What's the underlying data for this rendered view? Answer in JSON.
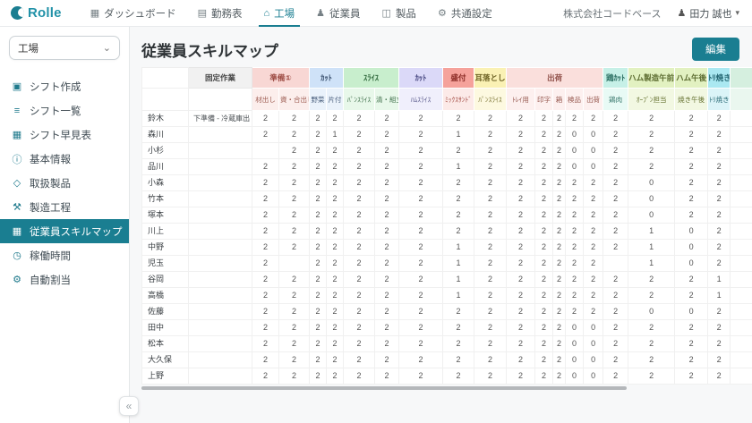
{
  "accent": "#1a7e91",
  "icons": {
    "dashboard": "▦",
    "timesheet": "▤",
    "factory": "⌂",
    "employees": "♟",
    "products": "◫",
    "settings": "⚙",
    "shift-create": "▣",
    "shift-list": "≡",
    "shift-table": "▦",
    "basic-info": "ⓘ",
    "handled-products": "◇",
    "process": "⚒",
    "skill-map": "▦",
    "hours": "◷",
    "auto-assign": "⚙",
    "user": "♟",
    "caret": "▾",
    "chevron-down": "⌄",
    "collapse": "«"
  },
  "topnav": {
    "logo": "Rolle",
    "items": [
      {
        "id": "dashboard",
        "label": "ダッシュボード",
        "icon": "dashboard",
        "active": false
      },
      {
        "id": "timesheet",
        "label": "勤務表",
        "icon": "timesheet",
        "active": false
      },
      {
        "id": "factory",
        "label": "工場",
        "icon": "factory",
        "active": true
      },
      {
        "id": "employees",
        "label": "従業員",
        "icon": "employees",
        "active": false
      },
      {
        "id": "products",
        "label": "製品",
        "icon": "products",
        "active": false
      },
      {
        "id": "settings",
        "label": "共通設定",
        "icon": "settings",
        "active": false
      }
    ],
    "company": "株式会社コードベース",
    "user": "田力 誠也"
  },
  "sidebar": {
    "selector_value": "工場",
    "items": [
      {
        "id": "shift-create",
        "label": "シフト作成",
        "icon": "shift-create",
        "active": false
      },
      {
        "id": "shift-list",
        "label": "シフト一覧",
        "icon": "shift-list",
        "active": false
      },
      {
        "id": "shift-table",
        "label": "シフト早見表",
        "icon": "shift-table",
        "active": false
      },
      {
        "id": "basic-info",
        "label": "基本情報",
        "icon": "basic-info",
        "active": false
      },
      {
        "id": "handled-products",
        "label": "取扱製品",
        "icon": "handled-products",
        "active": false
      },
      {
        "id": "process",
        "label": "製造工程",
        "icon": "process",
        "active": false
      },
      {
        "id": "skill-map",
        "label": "従業員スキルマップ",
        "icon": "skill-map",
        "active": true
      },
      {
        "id": "hours",
        "label": "稼働時間",
        "icon": "hours",
        "active": false
      },
      {
        "id": "auto-assign",
        "label": "自動割当",
        "icon": "auto-assign",
        "active": false
      }
    ]
  },
  "main": {
    "title": "従業員スキルマップ",
    "edit_button": "編集"
  },
  "table": {
    "fixed_col_header": "固定作業",
    "groups": [
      {
        "label": "準備①",
        "bg": "#f8d7d4",
        "fg": "#9c4a42",
        "sub_bg": "#fceeec",
        "sub_fg": "#9c5a50",
        "cols": [
          "材出し",
          "資・合出し"
        ]
      },
      {
        "label": "ｶｯﾄ",
        "bg": "#cfe2f8",
        "fg": "#3f5573",
        "sub_bg": "#eaf2fb",
        "sub_fg": "#4a5f7d",
        "cols": [
          "野菜",
          "片付"
        ]
      },
      {
        "label": "ｽﾗｲｽ",
        "bg": "#c8eecd",
        "fg": "#336b3f",
        "sub_bg": "#e8f8ea",
        "sub_fg": "#40704c",
        "cols": [
          "ﾊﾟﾝｽﾗｲｽ",
          "清・組立"
        ]
      },
      {
        "label": "ｶｯﾄ",
        "bg": "#dbd9f8",
        "fg": "#4c4c85",
        "sub_bg": "#f0effc",
        "sub_fg": "#5a5a8c",
        "cols": [
          "ﾊﾑｽﾗｲｽ"
        ]
      },
      {
        "label": "盛付",
        "bg": "#f5a29b",
        "fg": "#8a2b25",
        "sub_bg": "#fceae8",
        "sub_fg": "#a34a42",
        "cols": [
          "ﾐｯｸｽｻﾝﾄﾞ"
        ]
      },
      {
        "label": "耳落とし",
        "bg": "#faf1b4",
        "fg": "#6e6325",
        "sub_bg": "#fdf9e0",
        "sub_fg": "#77702f",
        "cols": [
          "ﾊﾟﾝｽﾗｲｽ"
        ]
      },
      {
        "label": "出荷",
        "bg": "#fadfdc",
        "fg": "#8f4f48",
        "sub_bg": "#fdf0ef",
        "sub_fg": "#96584f",
        "cols": [
          "ﾄﾚｲ用",
          "印字",
          "箱",
          "検品",
          "出荷"
        ]
      },
      {
        "label": "鶏ｶｯﾄ",
        "bg": "#c6f0e7",
        "fg": "#2a6e62",
        "sub_bg": "#e8faf5",
        "sub_fg": "#35756a",
        "cols": [
          "鶏肉"
        ]
      },
      {
        "label": "ハム製造午前",
        "bg": "#e2f1c1",
        "fg": "#5a6a2e",
        "sub_bg": "#f2f8e2",
        "sub_fg": "#64702f",
        "cols": [
          "ｵｰﾌﾞﾝ担当"
        ]
      },
      {
        "label": "ハム午後",
        "bg": "#e2f1c1",
        "fg": "#5a6a2e",
        "sub_bg": "#f2f8e2",
        "sub_fg": "#64702f",
        "cols": [
          "焼き午後"
        ]
      },
      {
        "label": "ﾄﾘ焼き",
        "bg": "#aae8f1",
        "fg": "#20636f",
        "sub_bg": "#dbf4f8",
        "sub_fg": "#2b6b77",
        "cols": [
          "ﾄﾘ焼き"
        ]
      },
      {
        "label": "",
        "bg": "#d5efdf",
        "fg": "#444444",
        "sub_bg": "#eaf7ef",
        "sub_fg": "#555555",
        "cols": [
          ""
        ]
      }
    ],
    "rows": [
      {
        "name": "鈴木",
        "fixed": "下準備 - 冷蔵庫出し",
        "values": [
          "2",
          "2",
          "2",
          "2",
          "2",
          "2",
          "2",
          "2",
          "2",
          "2",
          "2",
          "2",
          "2",
          "2",
          "2",
          "2",
          "2",
          "2"
        ]
      },
      {
        "name": "森川",
        "fixed": "",
        "values": [
          "2",
          "2",
          "2",
          "1",
          "2",
          "2",
          "2",
          "1",
          "2",
          "2",
          "2",
          "2",
          "0",
          "0",
          "2",
          "2",
          "2",
          "2"
        ]
      },
      {
        "name": "小杉",
        "fixed": "",
        "values": [
          "",
          "2",
          "2",
          "2",
          "2",
          "2",
          "2",
          "2",
          "2",
          "2",
          "2",
          "2",
          "0",
          "0",
          "2",
          "2",
          "2",
          "2"
        ]
      },
      {
        "name": "品川",
        "fixed": "",
        "values": [
          "2",
          "2",
          "2",
          "2",
          "2",
          "2",
          "2",
          "1",
          "2",
          "2",
          "2",
          "2",
          "0",
          "0",
          "2",
          "2",
          "2",
          "2"
        ]
      },
      {
        "name": "小森",
        "fixed": "",
        "values": [
          "2",
          "2",
          "2",
          "2",
          "2",
          "2",
          "2",
          "2",
          "2",
          "2",
          "2",
          "2",
          "2",
          "2",
          "2",
          "0",
          "2",
          "2"
        ]
      },
      {
        "name": "竹本",
        "fixed": "",
        "values": [
          "2",
          "2",
          "2",
          "2",
          "2",
          "2",
          "2",
          "2",
          "2",
          "2",
          "2",
          "2",
          "2",
          "2",
          "2",
          "0",
          "2",
          "2"
        ]
      },
      {
        "name": "塚本",
        "fixed": "",
        "values": [
          "2",
          "2",
          "2",
          "2",
          "2",
          "2",
          "2",
          "2",
          "2",
          "2",
          "2",
          "2",
          "2",
          "2",
          "2",
          "0",
          "2",
          "2"
        ]
      },
      {
        "name": "川上",
        "fixed": "",
        "values": [
          "2",
          "2",
          "2",
          "2",
          "2",
          "2",
          "2",
          "2",
          "2",
          "2",
          "2",
          "2",
          "2",
          "2",
          "2",
          "1",
          "0",
          "2"
        ]
      },
      {
        "name": "中野",
        "fixed": "",
        "values": [
          "2",
          "2",
          "2",
          "2",
          "2",
          "2",
          "2",
          "1",
          "2",
          "2",
          "2",
          "2",
          "2",
          "2",
          "2",
          "1",
          "0",
          "2"
        ]
      },
      {
        "name": "児玉",
        "fixed": "",
        "values": [
          "2",
          "",
          "2",
          "2",
          "2",
          "2",
          "2",
          "1",
          "2",
          "2",
          "2",
          "2",
          "2",
          "2",
          "",
          "1",
          "0",
          "2"
        ]
      },
      {
        "name": "谷岡",
        "fixed": "",
        "values": [
          "2",
          "2",
          "2",
          "2",
          "2",
          "2",
          "2",
          "1",
          "2",
          "2",
          "2",
          "2",
          "2",
          "2",
          "2",
          "2",
          "2",
          "1"
        ]
      },
      {
        "name": "高橋",
        "fixed": "",
        "values": [
          "2",
          "2",
          "2",
          "2",
          "2",
          "2",
          "2",
          "1",
          "2",
          "2",
          "2",
          "2",
          "2",
          "2",
          "2",
          "2",
          "2",
          "1"
        ]
      },
      {
        "name": "佐藤",
        "fixed": "",
        "values": [
          "2",
          "2",
          "2",
          "2",
          "2",
          "2",
          "2",
          "2",
          "2",
          "2",
          "2",
          "2",
          "2",
          "2",
          "2",
          "0",
          "0",
          "2"
        ]
      },
      {
        "name": "田中",
        "fixed": "",
        "values": [
          "2",
          "2",
          "2",
          "2",
          "2",
          "2",
          "2",
          "2",
          "2",
          "2",
          "2",
          "2",
          "0",
          "0",
          "2",
          "2",
          "2",
          "2"
        ]
      },
      {
        "name": "松本",
        "fixed": "",
        "values": [
          "2",
          "2",
          "2",
          "2",
          "2",
          "2",
          "2",
          "2",
          "2",
          "2",
          "2",
          "2",
          "0",
          "0",
          "2",
          "2",
          "2",
          "2"
        ]
      },
      {
        "name": "大久保",
        "fixed": "",
        "values": [
          "2",
          "2",
          "2",
          "2",
          "2",
          "2",
          "2",
          "2",
          "2",
          "2",
          "2",
          "2",
          "0",
          "0",
          "2",
          "2",
          "2",
          "2"
        ]
      },
      {
        "name": "上野",
        "fixed": "",
        "values": [
          "2",
          "2",
          "2",
          "2",
          "2",
          "2",
          "2",
          "2",
          "2",
          "2",
          "2",
          "2",
          "0",
          "0",
          "2",
          "2",
          "2",
          "2"
        ]
      }
    ]
  }
}
